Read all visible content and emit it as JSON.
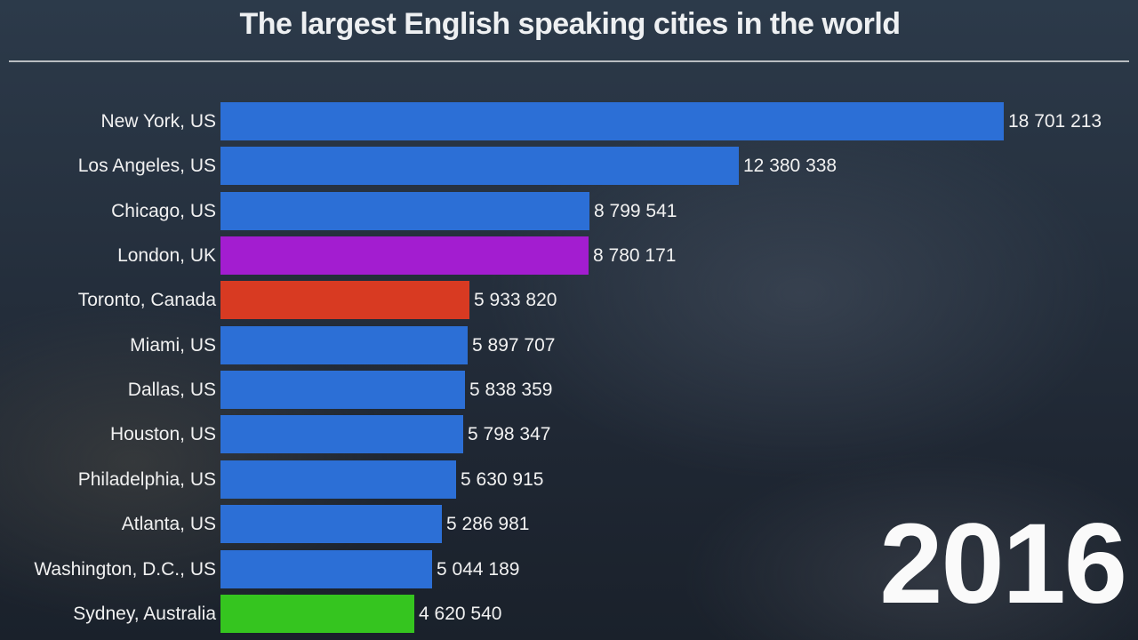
{
  "header": {
    "title": "The largest English speaking cities in the world"
  },
  "year_label": "2016",
  "colors": {
    "us": "#2c6fd6",
    "uk": "#a31dd0",
    "canada": "#d83a22",
    "australia": "#35c51f",
    "text": "#f1f1f1"
  },
  "chart_data": {
    "type": "bar",
    "orientation": "horizontal",
    "title": "The largest English speaking cities in the world",
    "annotation": "2016",
    "xlabel": "",
    "ylabel": "",
    "grid": false,
    "legend": null,
    "categories": [
      "New York, US",
      "Los Angeles, US",
      "Chicago, US",
      "London, UK",
      "Toronto, Canada",
      "Miami, US",
      "Dallas, US",
      "Houston, US",
      "Philadelphia, US",
      "Atlanta, US",
      "Washington, D.C., US",
      "Sydney, Australia"
    ],
    "values": [
      18701213,
      12380338,
      8799541,
      8780171,
      5933820,
      5897707,
      5838359,
      5798347,
      5630915,
      5286981,
      5044189,
      4620540
    ],
    "value_labels": [
      "18 701 213",
      "12 380 338",
      "8 799 541",
      "8 780 171",
      "5 933 820",
      "5 897 707",
      "5 838 359",
      "5 798 347",
      "5 630 915",
      "5 286 981",
      "5 044 189",
      "4 620 540"
    ],
    "bar_colors": [
      "#2c6fd6",
      "#2c6fd6",
      "#2c6fd6",
      "#a31dd0",
      "#d83a22",
      "#2c6fd6",
      "#2c6fd6",
      "#2c6fd6",
      "#2c6fd6",
      "#2c6fd6",
      "#2c6fd6",
      "#35c51f"
    ]
  }
}
